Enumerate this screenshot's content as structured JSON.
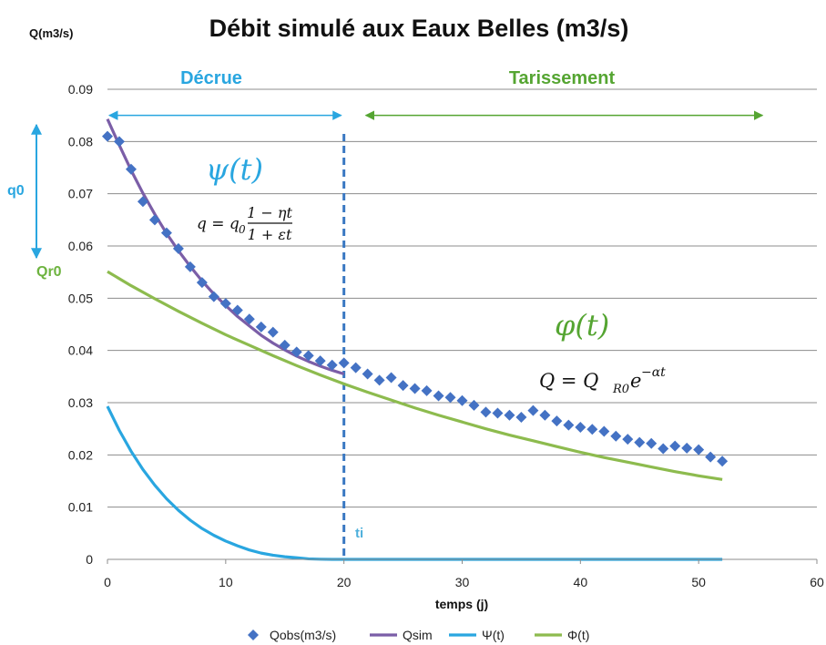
{
  "chart_data": {
    "type": "line",
    "title": "Débit simulé aux Eaux Belles (m3/s)",
    "ylabel": "Q(m3/s)",
    "xlabel": "temps (j)",
    "xlim": [
      0,
      60
    ],
    "ylim": [
      0,
      0.09
    ],
    "x_ticks": [
      "0",
      "10",
      "20",
      "30",
      "40",
      "50",
      "60"
    ],
    "y_ticks": [
      "0",
      "0.01",
      "0.02",
      "0.03",
      "0.04",
      "0.05",
      "0.06",
      "0.07",
      "0.08",
      "0.09"
    ],
    "grid": "horizontal",
    "legend_position": "bottom",
    "annotations": {
      "phase_decrue": "Décrue",
      "phase_tarissement": "Tarissement",
      "q0_label": "q0",
      "qr0_label": "Qr0",
      "ti_label": "ti",
      "ti_x": 20,
      "psi_label": "ψ(t)",
      "phi_label": "φ(t)",
      "eq_q": "q = q",
      "eq_q_sub": "0",
      "eq_num": "1 − ηt",
      "eq_den": "1 + εt",
      "eq_Q": "Q = Q",
      "eq_Q_sub": "R0",
      "eq_Q_base": "e",
      "eq_Q_exp": "−αt"
    },
    "series": [
      {
        "name": "Qobs(m3/s)",
        "type": "scatter",
        "color": "#4472c4",
        "x": [
          0,
          1,
          2,
          3,
          4,
          5,
          6,
          7,
          8,
          9,
          10,
          11,
          12,
          13,
          14,
          15,
          16,
          17,
          18,
          19,
          20,
          21,
          22,
          23,
          24,
          25,
          26,
          27,
          28,
          29,
          30,
          31,
          32,
          33,
          34,
          35,
          36,
          37,
          38,
          39,
          40,
          41,
          42,
          43,
          44,
          45,
          46,
          47,
          48,
          49,
          50,
          51,
          52
        ],
        "y": [
          0.081,
          0.08,
          0.0747,
          0.0685,
          0.065,
          0.0625,
          0.0595,
          0.056,
          0.053,
          0.0503,
          0.049,
          0.0477,
          0.046,
          0.0445,
          0.0435,
          0.041,
          0.0397,
          0.039,
          0.038,
          0.0372,
          0.0376,
          0.0367,
          0.0355,
          0.0343,
          0.0348,
          0.0333,
          0.0327,
          0.0323,
          0.0313,
          0.031,
          0.0304,
          0.0295,
          0.0282,
          0.028,
          0.0276,
          0.0272,
          0.0285,
          0.0276,
          0.0265,
          0.0257,
          0.0253,
          0.0249,
          0.0245,
          0.0236,
          0.023,
          0.0224,
          0.0222,
          0.0212,
          0.0217,
          0.0213,
          0.021,
          0.0196,
          0.0188
        ]
      },
      {
        "name": "Qsim",
        "type": "line",
        "color": "#7b5ea7",
        "x": [
          0,
          1,
          2,
          3,
          4,
          5,
          6,
          7,
          8,
          9,
          10,
          11,
          12,
          13,
          14,
          15,
          16,
          17,
          18,
          19,
          20
        ],
        "y": [
          0.0843,
          0.0793,
          0.0745,
          0.0701,
          0.0661,
          0.0624,
          0.0591,
          0.0561,
          0.0533,
          0.0508,
          0.0486,
          0.0465,
          0.0447,
          0.0429,
          0.0414,
          0.0401,
          0.0389,
          0.0379,
          0.037,
          0.0362,
          0.0355
        ]
      },
      {
        "name": "Ψ(t)",
        "type": "line",
        "color": "#29a6e0",
        "x": [
          0,
          1,
          2,
          3,
          4,
          5,
          6,
          7,
          8,
          9,
          10,
          11,
          12,
          13,
          14,
          15,
          16,
          17,
          18,
          19,
          20,
          25,
          30,
          35,
          40,
          45,
          50,
          52
        ],
        "y": [
          0.0293,
          0.0247,
          0.0207,
          0.0172,
          0.0142,
          0.0116,
          0.0094,
          0.0075,
          0.0059,
          0.0046,
          0.0035,
          0.0026,
          0.0018,
          0.0012,
          0.0008,
          0.0005,
          0.0003,
          0.0001,
          3e-05,
          0,
          0,
          0,
          0,
          0,
          0,
          0,
          0,
          0
        ]
      },
      {
        "name": "Φ(t)",
        "type": "line",
        "color": "#8dbb4e",
        "x": [
          0,
          2,
          4,
          6,
          8,
          10,
          12,
          14,
          16,
          18,
          20,
          22,
          24,
          26,
          28,
          30,
          32,
          34,
          36,
          38,
          40,
          42,
          44,
          46,
          48,
          50,
          52
        ],
        "y": [
          0.0551,
          0.0524,
          0.0499,
          0.0475,
          0.0452,
          0.043,
          0.041,
          0.039,
          0.0371,
          0.0353,
          0.0336,
          0.032,
          0.0305,
          0.029,
          0.0276,
          0.0263,
          0.025,
          0.0238,
          0.0227,
          0.0216,
          0.0205,
          0.0195,
          0.0186,
          0.0177,
          0.0168,
          0.016,
          0.0153
        ]
      }
    ]
  }
}
